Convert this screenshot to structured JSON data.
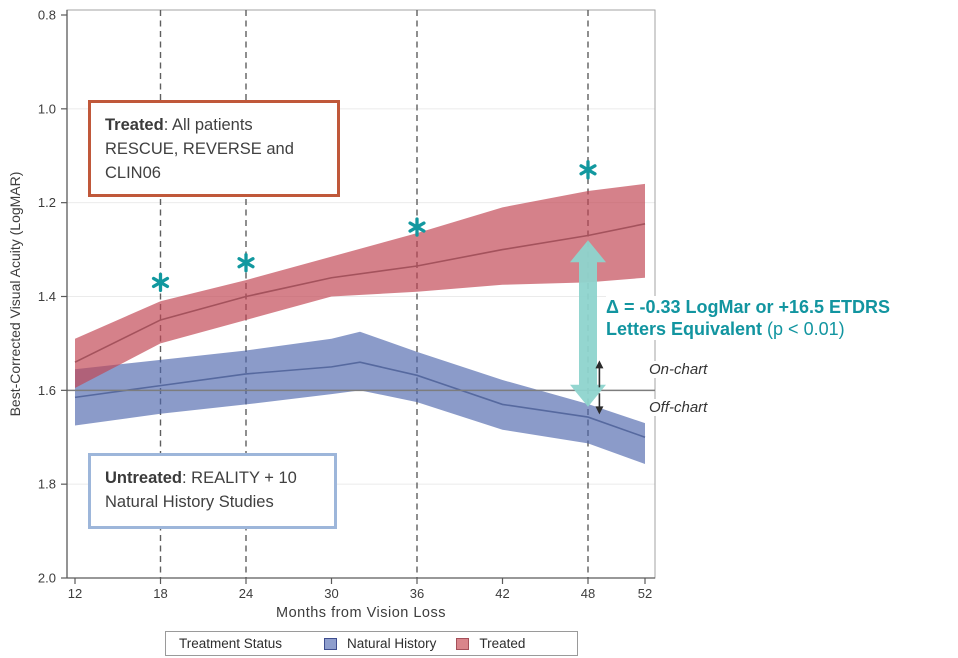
{
  "annotations": {
    "treated_box": {
      "line1_bold": "Treated",
      "line1_rest": ": All patients",
      "line2": "RESCUE, REVERSE and",
      "line3": "CLIN06"
    },
    "untreated_box": {
      "line1_bold": "Untreated",
      "line1_rest": ": REALITY + 10",
      "line2": "Natural History Studies"
    },
    "delta": {
      "line1": "Δ = -0.33 LogMar or +16.5 ETDRS",
      "line2_bold": "Letters Equivalent",
      "line2_rest": " (p < 0.01)",
      "color": "#1295a0"
    },
    "on_chart_label": "On-chart",
    "off_chart_label": "Off-chart"
  },
  "legend": {
    "title": "Treatment Status",
    "items": [
      {
        "label": "Natural History",
        "color": "#8e9ecd",
        "border": "#3f4e8f"
      },
      {
        "label": "Treated",
        "color": "#d9858b",
        "border": "#a5505a"
      }
    ]
  },
  "chart_data": {
    "type": "area",
    "title": "",
    "xlabel": "Months from Vision Loss",
    "ylabel": "Best-Corrected Visual Acuity (LogMAR)",
    "x_ticks": [
      12,
      18,
      24,
      30,
      36,
      42,
      48,
      52
    ],
    "y_ticks": [
      0.8,
      1.0,
      1.2,
      1.4,
      1.6,
      1.8,
      2.0
    ],
    "xlim": [
      11.4,
      52.7
    ],
    "ylim": [
      0.79,
      2.0
    ],
    "y_axis_reversed": true,
    "grid": "horizontal",
    "y_gridlines": [
      1.0,
      1.2,
      1.4,
      1.6,
      1.8
    ],
    "dashed_vlines_x": [
      18,
      24,
      36,
      48
    ],
    "reference_hline_y": 1.6,
    "series": [
      {
        "name": "Natural History",
        "role": "untreated",
        "line_color": "#56699f",
        "fill_color": "rgba(77,101,172,0.65)",
        "x": [
          12,
          18,
          24,
          30,
          32,
          36,
          42,
          48,
          52
        ],
        "mean": [
          1.615,
          1.59,
          1.565,
          1.55,
          1.54,
          1.568,
          1.63,
          1.657,
          1.7
        ],
        "band_upper": [
          1.555,
          1.535,
          1.515,
          1.49,
          1.475,
          1.518,
          1.578,
          1.629,
          1.67
        ],
        "band_lower": [
          1.675,
          1.65,
          1.63,
          1.608,
          1.6,
          1.625,
          1.684,
          1.713,
          1.757
        ]
      },
      {
        "name": "Treated",
        "role": "treated",
        "line_color": "#a4525c",
        "fill_color": "rgba(193,70,82,0.68)",
        "x": [
          12,
          18,
          24,
          30,
          36,
          42,
          48,
          52
        ],
        "mean": [
          1.54,
          1.45,
          1.4,
          1.36,
          1.335,
          1.3,
          1.27,
          1.245
        ],
        "band_upper": [
          1.49,
          1.41,
          1.365,
          1.315,
          1.265,
          1.21,
          1.175,
          1.16
        ],
        "band_lower": [
          1.595,
          1.5,
          1.45,
          1.4,
          1.39,
          1.375,
          1.37,
          1.36
        ]
      }
    ],
    "significance_markers": {
      "symbol": "*",
      "color": "#12989f",
      "points": [
        {
          "x": 18,
          "y": 1.37
        },
        {
          "x": 24,
          "y": 1.328
        },
        {
          "x": 36,
          "y": 1.252
        },
        {
          "x": 48,
          "y": 1.13
        }
      ]
    },
    "delta_arrow": {
      "x": 48,
      "y_from": 1.28,
      "y_to": 1.635,
      "color": "#8ed4ce"
    },
    "onoff_divider": {
      "arrow_x": 48.8,
      "color": "#2b2b2b"
    },
    "colors": {
      "grid": "#ebebeb",
      "plot_border": "#a3a3a3",
      "axis": "#5a5a5a",
      "tick_label": "#3d3d3d",
      "axis_title": "#3d3d3d",
      "dashed_line": "#5f5f5f",
      "reference_line": "#7d7d7d"
    }
  }
}
